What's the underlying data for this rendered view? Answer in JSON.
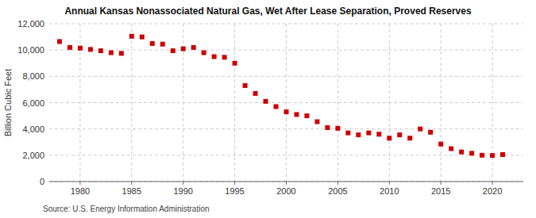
{
  "chart_data": {
    "type": "scatter",
    "title": "Annual Kansas Nonassociated Natural Gas, Wet After Lease Separation, Proved Reserves",
    "y_label": "Billion Cubic Feet",
    "annotations": [
      "Source: U.S. Energy Information Administration"
    ],
    "x": [
      1978,
      1979,
      1980,
      1981,
      1982,
      1983,
      1984,
      1985,
      1986,
      1987,
      1988,
      1989,
      1990,
      1991,
      1992,
      1993,
      1994,
      1995,
      1996,
      1997,
      1998,
      1999,
      2000,
      2001,
      2002,
      2003,
      2004,
      2005,
      2006,
      2007,
      2008,
      2009,
      2010,
      2011,
      2012,
      2013,
      2014,
      2015,
      2016,
      2017,
      2018,
      2019,
      2020,
      2021
    ],
    "values": [
      10650,
      10200,
      10150,
      10050,
      9950,
      9800,
      9750,
      11050,
      11000,
      10500,
      10450,
      9950,
      10100,
      10200,
      9800,
      9500,
      9450,
      9000,
      7300,
      6700,
      6100,
      5700,
      5300,
      5100,
      5000,
      4550,
      4100,
      4050,
      3700,
      3550,
      3700,
      3600,
      3300,
      3550,
      3300,
      4000,
      3750,
      2850,
      2500,
      2250,
      2150,
      2000,
      1980,
      2050
    ],
    "color": "#cc0000",
    "marker": "square",
    "xlim": [
      1977,
      2023
    ],
    "xticks": [
      1980,
      1985,
      1990,
      1995,
      2000,
      2005,
      2010,
      2015,
      2020
    ],
    "ylim": [
      0,
      12000
    ],
    "yticks": [
      0,
      {
        "value": 2000,
        "label": "2,000"
      },
      {
        "value": 4000,
        "label": "4,000"
      },
      {
        "value": 6000,
        "label": "6,000"
      },
      {
        "value": 8000,
        "label": "8,000"
      },
      {
        "value": 10000,
        "label": "10,000"
      },
      {
        "value": 12000,
        "label": "12,000"
      }
    ],
    "grid": true
  }
}
